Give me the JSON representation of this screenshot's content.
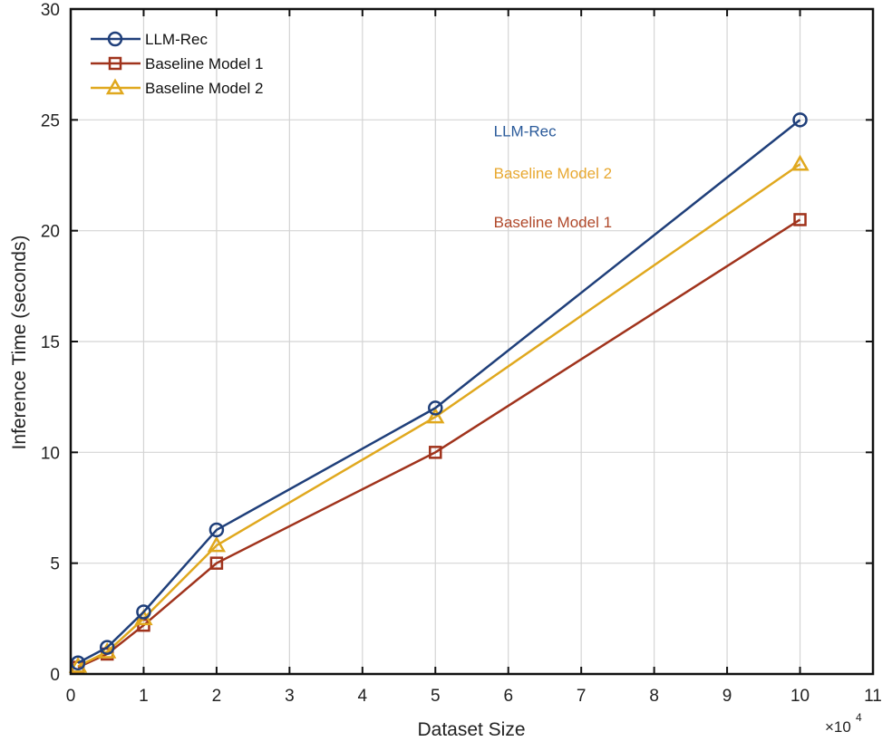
{
  "chart_data": {
    "type": "line",
    "title": "",
    "xlabel": "Dataset Size",
    "ylabel": "Inference Time (seconds)",
    "x_multiplier": "×10^4",
    "x_multiplier_base": "×10",
    "x_multiplier_exp": "4",
    "xlim": [
      0,
      11
    ],
    "ylim": [
      0,
      30
    ],
    "xticks": [
      "0",
      "1",
      "2",
      "3",
      "4",
      "5",
      "6",
      "7",
      "8",
      "9",
      "10",
      "11"
    ],
    "yticks": [
      "0",
      "5",
      "10",
      "15",
      "20",
      "25",
      "30"
    ],
    "grid": true,
    "legend_position": "upper left",
    "x": [
      0.1,
      0.5,
      1,
      2,
      5,
      10
    ],
    "series": [
      {
        "name": "LLM-Rec",
        "color": "#1f3f7a",
        "marker": "circle",
        "values": [
          0.5,
          1.2,
          2.8,
          6.5,
          12.0,
          25.0
        ]
      },
      {
        "name": "Baseline Model 1",
        "color": "#a0331c",
        "marker": "square",
        "values": [
          0.3,
          0.9,
          2.2,
          5.0,
          10.0,
          20.5
        ]
      },
      {
        "name": "Baseline Model 2",
        "color": "#e0a81e",
        "marker": "triangle",
        "values": [
          0.35,
          1.0,
          2.5,
          5.8,
          11.6,
          23.0
        ]
      }
    ],
    "annotations": [
      {
        "text": "LLM-Rec",
        "x": 5.8,
        "y": 24.5,
        "color": "#2a5a9a"
      },
      {
        "text": "Baseline Model 2",
        "x": 5.8,
        "y": 22.6,
        "color": "#e8a830"
      },
      {
        "text": "Baseline Model 1",
        "x": 5.8,
        "y": 20.4,
        "color": "#b0482a"
      }
    ]
  }
}
